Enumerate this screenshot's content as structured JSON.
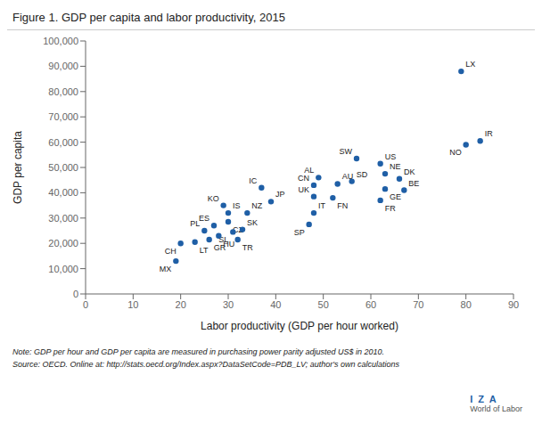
{
  "chart_data": {
    "type": "scatter",
    "title": "Figure 1. GDP per capita and labor productivity, 2015",
    "x_label": "Labor productivity (GDP per hour worked)",
    "y_label": "GDP per capita",
    "note": "Note: GDP per hour and GDP per capita are measured in purchasing power parity adjusted US$ in 2010.",
    "source": "Source: OECD. Online at: http://stats.oecd.org/Index.aspx?DataSetCode=PDB_LV; author's own calculations",
    "annotations": [
      "I  Z  A",
      "World of Labor"
    ],
    "point_labels": [
      "LX",
      "IR",
      "NO",
      "SW",
      "US",
      "NE",
      "DK",
      "AL",
      "SD",
      "GE",
      "BE",
      "CN",
      "AU",
      "IC",
      "UK",
      "FN",
      "FR",
      "JP",
      "IT",
      "SP",
      "NZ",
      "IS",
      "KO",
      "CZ",
      "ES",
      "SL",
      "SK",
      "TR",
      "PL",
      "HU",
      "GR",
      "LT",
      "CH",
      "MX"
    ],
    "x": [
      79,
      83,
      80,
      57,
      62,
      63,
      66,
      49,
      56,
      63,
      67,
      48,
      53,
      37,
      48,
      52,
      62,
      39,
      48,
      47,
      34,
      30,
      29,
      30,
      27,
      31,
      33,
      32,
      25,
      28,
      26,
      23,
      20,
      19
    ],
    "values": [
      88000,
      60500,
      59000,
      53500,
      51500,
      47500,
      45500,
      46000,
      44500,
      41500,
      41000,
      43000,
      43500,
      42000,
      38500,
      38000,
      37000,
      36500,
      32000,
      27500,
      32000,
      32000,
      35000,
      28500,
      27000,
      24500,
      25500,
      21500,
      25000,
      23000,
      21500,
      20500,
      20000,
      13000
    ],
    "color": "#1f5fa6",
    "xlim": [
      0,
      90
    ],
    "ylim": [
      0,
      100000
    ],
    "xticks": [
      0,
      10,
      20,
      30,
      40,
      50,
      60,
      70,
      80,
      90
    ],
    "yticks": [
      0,
      {
        "value": 10000,
        "label": "10,000"
      },
      {
        "value": 20000,
        "label": "20,000"
      },
      {
        "value": 30000,
        "label": "30,000"
      },
      {
        "value": 40000,
        "label": "40,000"
      },
      {
        "value": 50000,
        "label": "50,000"
      },
      {
        "value": 60000,
        "label": "60,000"
      },
      {
        "value": 70000,
        "label": "70,000"
      },
      {
        "value": 80000,
        "label": "80,000"
      },
      {
        "value": 90000,
        "label": "90,000"
      },
      {
        "value": 100000,
        "label": "100,000"
      }
    ],
    "grid": false
  }
}
